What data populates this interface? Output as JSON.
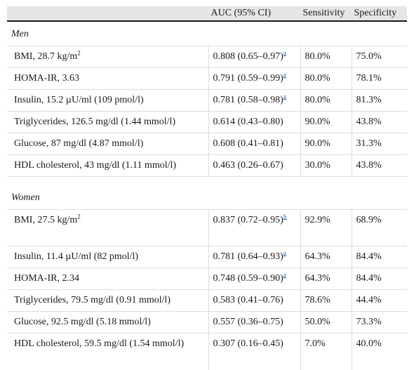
{
  "header": {
    "col0": "",
    "col1": "AUC (95% CI)",
    "col2": "Sensitivity",
    "col3": "Specificity"
  },
  "men": {
    "label": "Men",
    "rows": [
      {
        "marker": "BMI, 28.7 kg/m",
        "sup": "2",
        "auc": "0.808 (0.65–0.97)",
        "fn": "a",
        "sens": "80.0%",
        "spec": "75.0%"
      },
      {
        "marker": "HOMA-IR, 3.63",
        "auc": "0.791 (0.59–0.99)",
        "fn": "a",
        "sens": "80.0%",
        "spec": "78.1%"
      },
      {
        "marker": "Insulin, 15.2 µU/ml (109 pmol/l)",
        "auc": "0.781 (0.58–0.98)",
        "fn": "a",
        "sens": "80.0%",
        "spec": "81.3%"
      },
      {
        "marker": "Triglycerides, 126.5 mg/dl (1.44 mmol/l)",
        "auc": "0.614 (0.43–0.80)",
        "sens": "90.0%",
        "spec": "43.8%"
      },
      {
        "marker": "Glucose, 87 mg/dl (4.87 mmol/l)",
        "auc": "0.608 (0.41–0.81)",
        "sens": "90.0%",
        "spec": "31.3%"
      },
      {
        "marker": "HDL cholesterol, 43 mg/dl (1.11 mmol/l)",
        "auc": "0.463 (0.26–0.67)",
        "sens": "30.0%",
        "spec": "43.8%"
      }
    ]
  },
  "women": {
    "label": "Women",
    "rows": [
      {
        "marker": "BMI, 27.5 kg/m",
        "sup": "2",
        "auc": "0.837 (0.72–0.95)",
        "fn": "b",
        "sens": "92.9%",
        "spec": "68.9%"
      },
      {
        "marker": "Insulin, 11.4 µU/ml (82 pmol/l)",
        "auc": "0.781 (0.64–0.93)",
        "fn": "a",
        "sens": "64.3%",
        "spec": "84.4%"
      },
      {
        "marker": "HOMA-IR, 2.34",
        "auc": "0.748 (0.59–0.90)",
        "fn": "a",
        "sens": "64.3%",
        "spec": "84.4%"
      },
      {
        "marker": "Triglycerides, 79.5 mg/dl (0.91 mmol/l)",
        "auc": "0.583 (0.41–0.76)",
        "sens": "78.6%",
        "spec": "44.4%"
      },
      {
        "marker": "Glucose, 92.5 mg/dl (5.18 mmol/l)",
        "auc": "0.557 (0.36–0.75)",
        "sens": "50.0%",
        "spec": "73.3%"
      },
      {
        "marker": "HDL cholesterol, 59.5 mg/dl (1.54 mmol/l)",
        "auc": "0.307 (0.16–0.45)",
        "sens": "7.0%",
        "spec": "40.0%"
      }
    ]
  }
}
